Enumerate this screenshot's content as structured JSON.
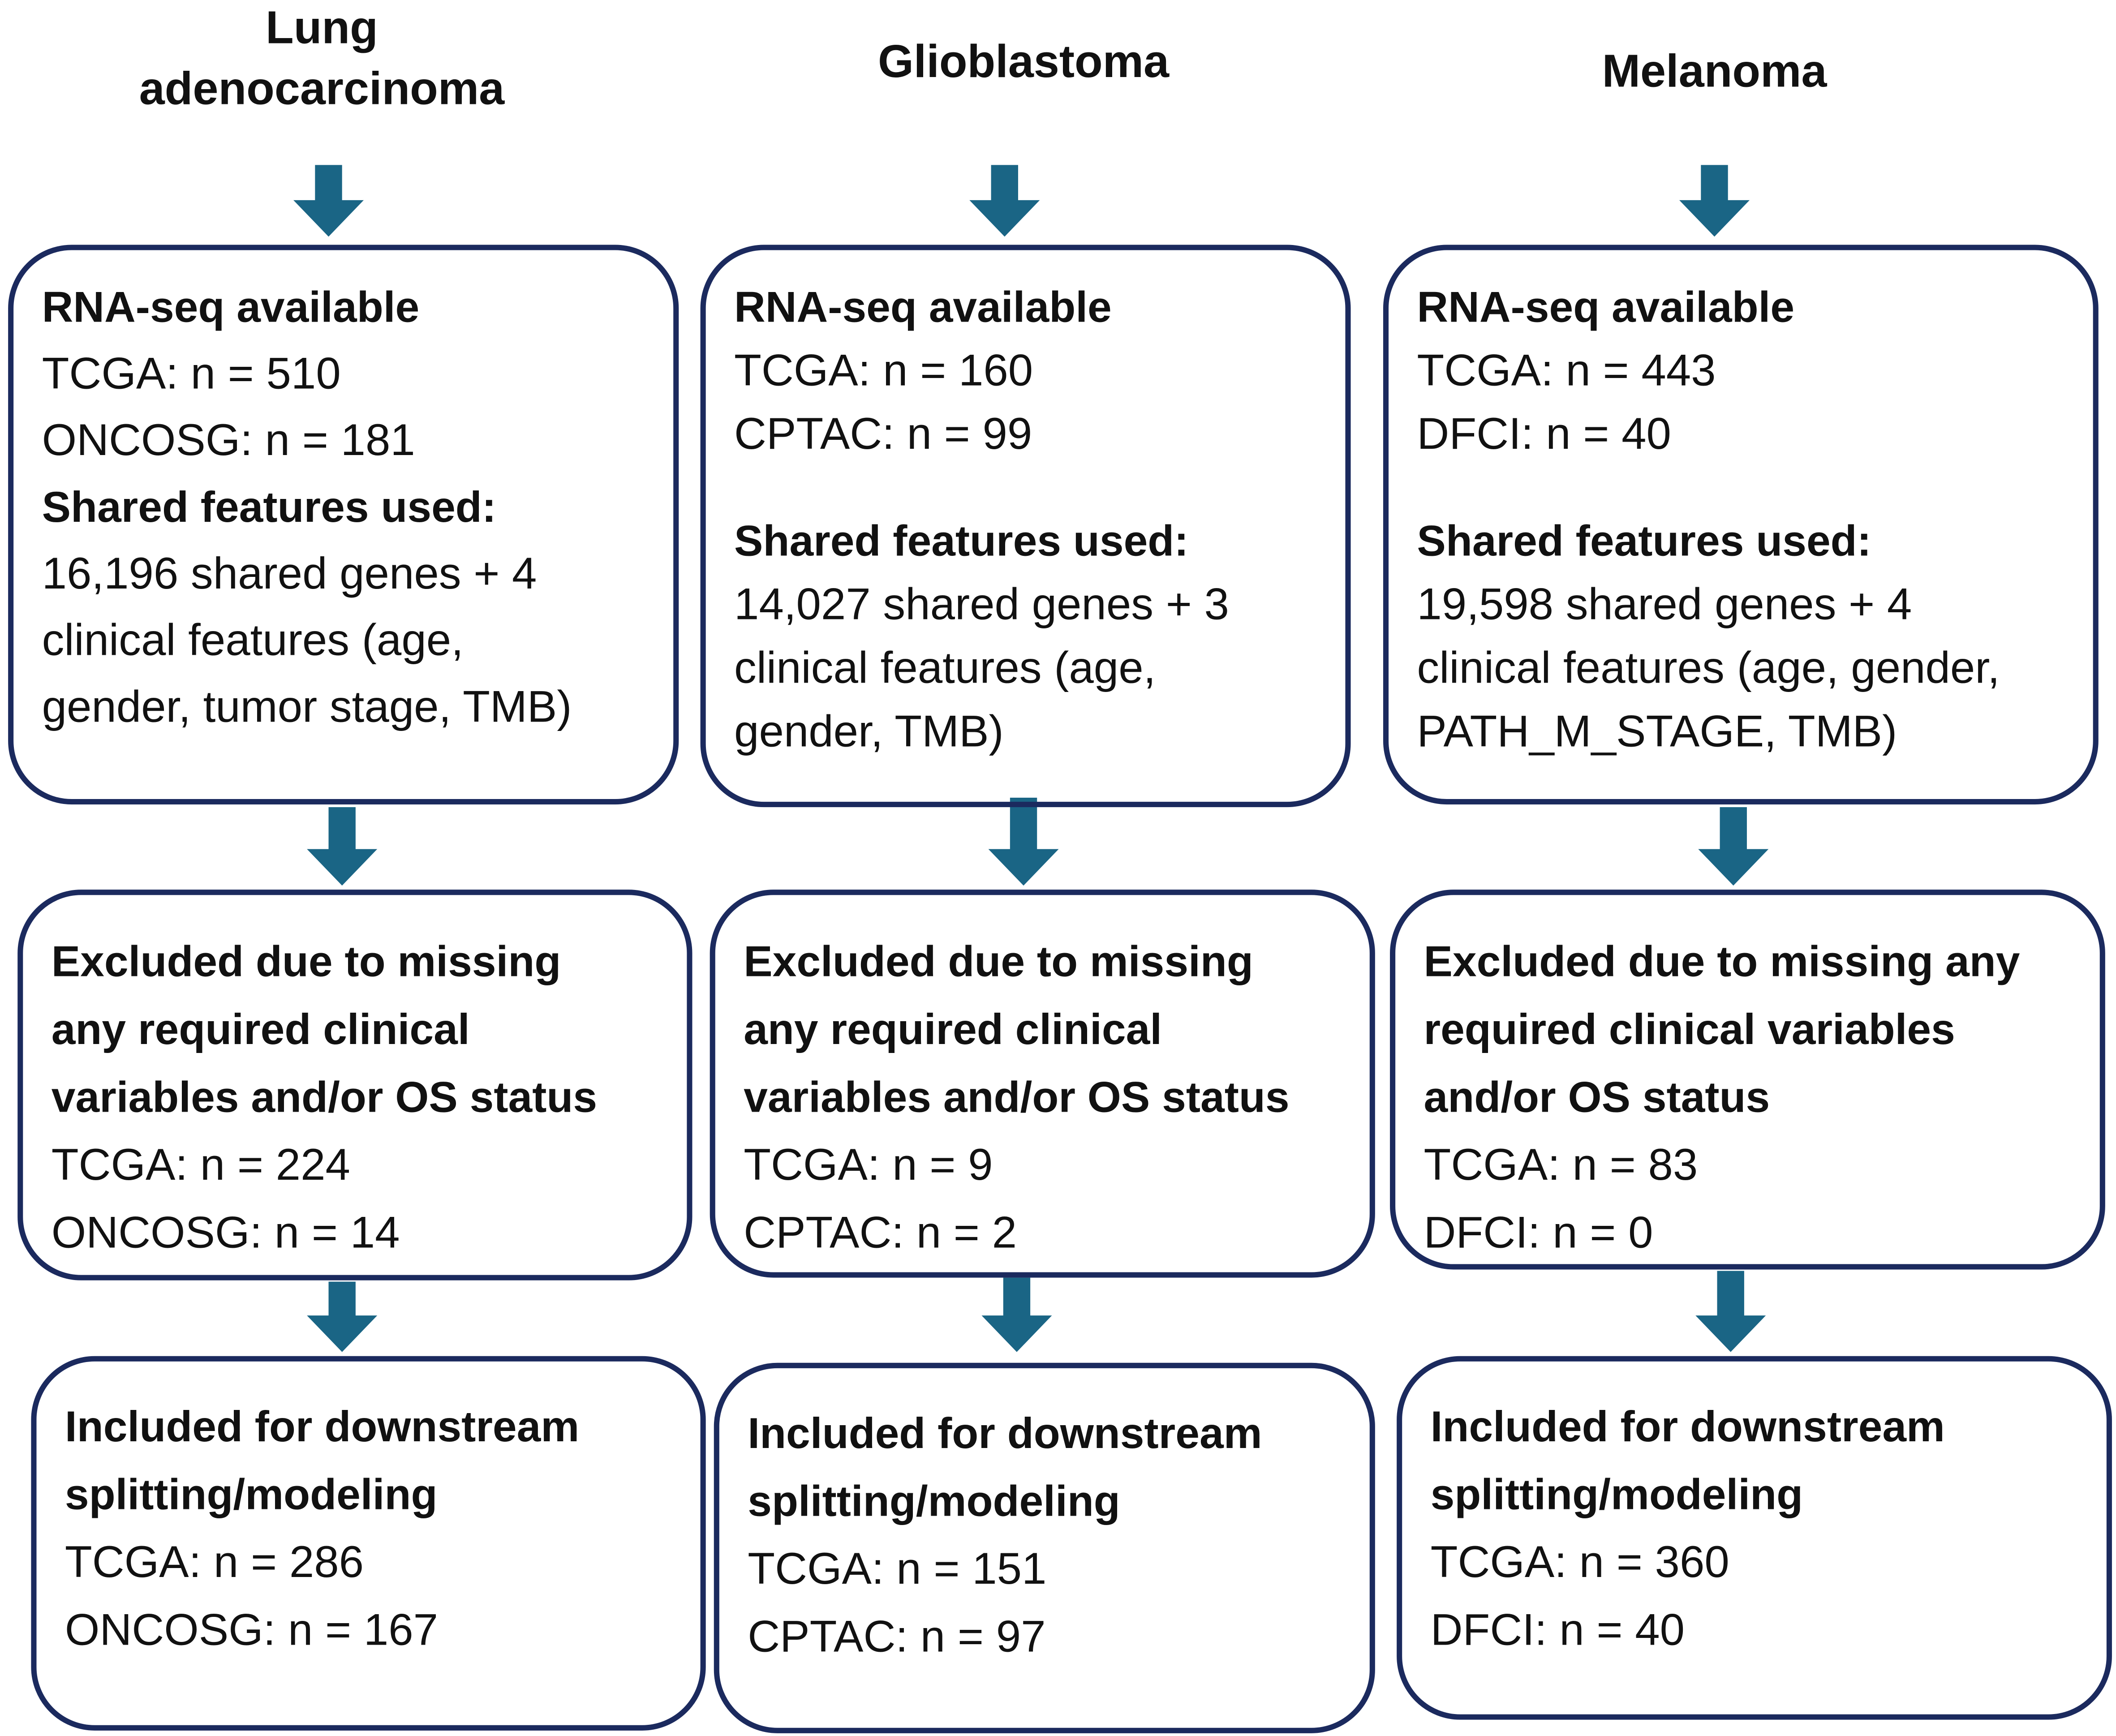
{
  "columns": [
    {
      "title": [
        "Lung",
        "adenocarcinoma"
      ],
      "boxes": [
        {
          "sections": [
            {
              "heading": [
                "RNA-seq available"
              ],
              "lines": [
                "TCGA: n = 510",
                "ONCOSG: n = 181"
              ]
            },
            {
              "heading": [
                "Shared features used:"
              ],
              "lines": [
                "16,196 shared genes + 4",
                "clinical features (age,",
                "gender, tumor stage, TMB)"
              ]
            }
          ]
        },
        {
          "sections": [
            {
              "heading": [
                "Excluded due to missing",
                "any required clinical",
                "variables and/or OS status"
              ],
              "lines": [
                "TCGA: n = 224",
                "ONCOSG: n = 14"
              ]
            }
          ]
        },
        {
          "sections": [
            {
              "heading": [
                "Included for downstream",
                "splitting/modeling"
              ],
              "lines": [
                "TCGA: n = 286",
                "ONCOSG: n = 167"
              ]
            }
          ]
        }
      ]
    },
    {
      "title": [
        "Glioblastoma"
      ],
      "boxes": [
        {
          "sections": [
            {
              "heading": [
                "RNA-seq available"
              ],
              "lines": [
                "TCGA: n = 160",
                "CPTAC: n = 99"
              ]
            },
            {
              "heading": [
                "Shared features used:"
              ],
              "lines": [
                "14,027 shared genes + 3",
                "clinical features (age,",
                "gender, TMB)"
              ]
            }
          ]
        },
        {
          "sections": [
            {
              "heading": [
                "Excluded due to missing",
                "any required clinical",
                "variables and/or OS status"
              ],
              "lines": [
                "TCGA: n = 9",
                "CPTAC: n = 2"
              ]
            }
          ]
        },
        {
          "sections": [
            {
              "heading": [
                "Included for downstream",
                "splitting/modeling"
              ],
              "lines": [
                "TCGA: n = 151",
                "CPTAC: n = 97"
              ]
            }
          ]
        }
      ]
    },
    {
      "title": [
        "Melanoma"
      ],
      "boxes": [
        {
          "sections": [
            {
              "heading": [
                "RNA-seq available"
              ],
              "lines": [
                "TCGA: n = 443",
                "DFCI: n = 40"
              ]
            },
            {
              "heading": [
                "Shared features used:"
              ],
              "lines": [
                "19,598 shared genes + 4",
                "clinical features (age, gender,",
                "PATH_M_STAGE, TMB)"
              ]
            }
          ]
        },
        {
          "sections": [
            {
              "heading": [
                "Excluded due to missing any",
                "required clinical variables",
                "and/or OS status"
              ],
              "lines": [
                "TCGA: n = 83",
                "DFCI: n = 0"
              ]
            }
          ]
        },
        {
          "sections": [
            {
              "heading": [
                "Included for downstream",
                "splitting/modeling"
              ],
              "lines": [
                "TCGA: n = 360",
                "DFCI: n = 40"
              ]
            }
          ]
        }
      ]
    }
  ]
}
